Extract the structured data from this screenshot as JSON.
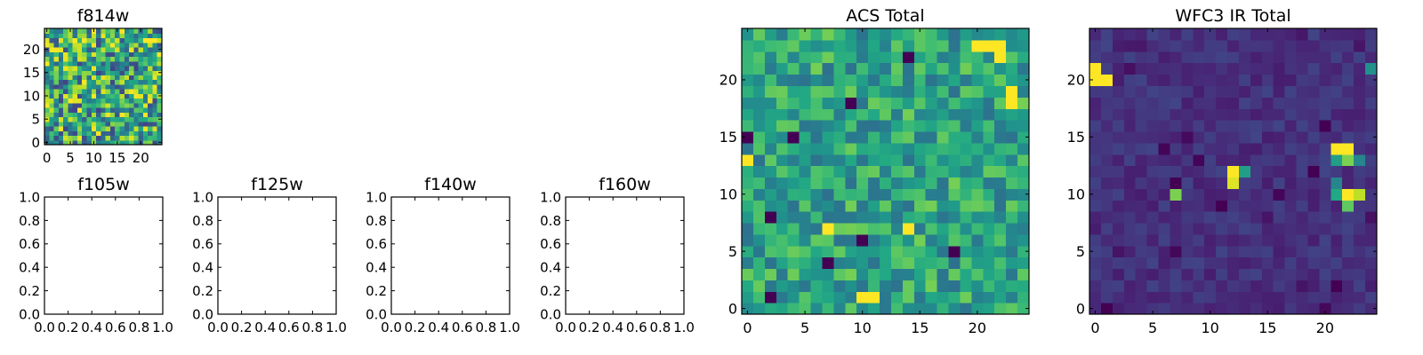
{
  "chart_data": [
    {
      "id": "f814w",
      "type": "heatmap",
      "title": "f814w",
      "xlim": [
        -0.5,
        24.5
      ],
      "ylim": [
        -0.5,
        24.5
      ],
      "xticks": [
        0,
        5,
        10,
        15,
        20
      ],
      "yticks": [
        0,
        5,
        10,
        15,
        20
      ],
      "colormap": "viridis",
      "grid": false,
      "seed": 11,
      "size": 25,
      "bright_patches": [
        [
          21,
          22
        ],
        [
          22,
          22
        ],
        [
          23,
          22
        ],
        [
          24,
          19
        ]
      ]
    },
    {
      "id": "f105w",
      "type": "heatmap",
      "title": "f105w",
      "xlim": [
        0,
        1
      ],
      "ylim": [
        0,
        1
      ],
      "xticks": [
        "0.0",
        "0.2",
        "0.4",
        "0.6",
        "0.8",
        "1.0"
      ],
      "yticks": [
        "0.0",
        "0.2",
        "0.4",
        "0.6",
        "0.8",
        "1.0"
      ],
      "empty": true
    },
    {
      "id": "f125w",
      "type": "heatmap",
      "title": "f125w",
      "xlim": [
        0,
        1
      ],
      "ylim": [
        0,
        1
      ],
      "xticks": [
        "0.0",
        "0.2",
        "0.4",
        "0.6",
        "0.8",
        "1.0"
      ],
      "yticks": [
        "0.0",
        "0.2",
        "0.4",
        "0.6",
        "0.8",
        "1.0"
      ],
      "empty": true
    },
    {
      "id": "f140w",
      "type": "heatmap",
      "title": "f140w",
      "xlim": [
        0,
        1
      ],
      "ylim": [
        0,
        1
      ],
      "xticks": [
        "0.0",
        "0.2",
        "0.4",
        "0.6",
        "0.8",
        "1.0"
      ],
      "yticks": [
        "0.0",
        "0.2",
        "0.4",
        "0.6",
        "0.8",
        "1.0"
      ],
      "empty": true
    },
    {
      "id": "f160w",
      "type": "heatmap",
      "title": "f160w",
      "xlim": [
        0,
        1
      ],
      "ylim": [
        0,
        1
      ],
      "xticks": [
        "0.0",
        "0.2",
        "0.4",
        "0.6",
        "0.8",
        "1.0"
      ],
      "yticks": [
        "0.0",
        "0.2",
        "0.4",
        "0.6",
        "0.8",
        "1.0"
      ],
      "empty": true
    },
    {
      "id": "acs-total",
      "type": "heatmap",
      "title": "ACS Total",
      "xlim": [
        -0.5,
        24.5
      ],
      "ylim": [
        -0.5,
        24.5
      ],
      "xticks": [
        0,
        5,
        10,
        15,
        20
      ],
      "yticks": [
        0,
        5,
        10,
        15,
        20
      ],
      "colormap": "viridis",
      "grid": false,
      "seed": 23,
      "size": 25,
      "bright_patches": [
        [
          20,
          23
        ],
        [
          21,
          23
        ],
        [
          22,
          23
        ],
        [
          22,
          22
        ],
        [
          23,
          19
        ],
        [
          23,
          18
        ],
        [
          0,
          13
        ],
        [
          7,
          7
        ],
        [
          10,
          1
        ],
        [
          11,
          1
        ],
        [
          14,
          7
        ]
      ],
      "dark_patches": [
        [
          14,
          22
        ],
        [
          0,
          15
        ],
        [
          4,
          15
        ],
        [
          9,
          18
        ],
        [
          10,
          6
        ],
        [
          2,
          8
        ],
        [
          7,
          4
        ],
        [
          2,
          1
        ],
        [
          18,
          5
        ]
      ]
    },
    {
      "id": "wfc3-ir-total",
      "type": "heatmap",
      "title": "WFC3 IR Total",
      "xlim": [
        -0.5,
        24.5
      ],
      "ylim": [
        -0.5,
        24.5
      ],
      "xticks": [
        0,
        5,
        10,
        15,
        20
      ],
      "yticks": [
        0,
        5,
        10,
        15,
        20
      ],
      "colormap": "viridis",
      "grid": false,
      "seed": 37,
      "size": 25,
      "background_level": 0.14,
      "sources": [
        {
          "x": 0,
          "y": 21,
          "v": 1.0
        },
        {
          "x": 1,
          "y": 20,
          "v": 1.0
        },
        {
          "x": 0,
          "y": 20,
          "v": 1.0
        },
        {
          "x": 12,
          "y": 12,
          "v": 1.0
        },
        {
          "x": 12,
          "y": 11,
          "v": 0.95
        },
        {
          "x": 13,
          "y": 12,
          "v": 0.55
        },
        {
          "x": 7,
          "y": 10,
          "v": 0.8
        },
        {
          "x": 21,
          "y": 14,
          "v": 1.0
        },
        {
          "x": 22,
          "y": 14,
          "v": 1.0
        },
        {
          "x": 21,
          "y": 13,
          "v": 0.55
        },
        {
          "x": 22,
          "y": 13,
          "v": 0.8
        },
        {
          "x": 22,
          "y": 10,
          "v": 1.0
        },
        {
          "x": 23,
          "y": 10,
          "v": 0.9
        },
        {
          "x": 21,
          "y": 10,
          "v": 0.6
        },
        {
          "x": 22,
          "y": 9,
          "v": 0.75
        },
        {
          "x": 21,
          "y": 11,
          "v": 0.45
        },
        {
          "x": 23,
          "y": 13,
          "v": 0.45
        },
        {
          "x": 24,
          "y": 21,
          "v": 0.5
        }
      ]
    }
  ]
}
